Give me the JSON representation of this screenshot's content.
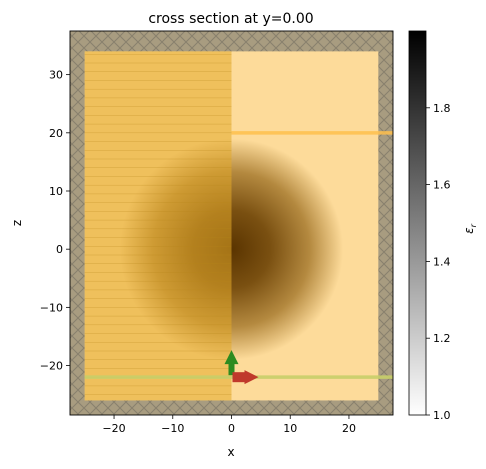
{
  "chart_data": {
    "type": "heatmap",
    "title": "cross section at y=0.00",
    "xlabel": "x",
    "ylabel": "z",
    "xlim": [
      -27.5,
      27.5
    ],
    "ylim": [
      -28.5,
      37.5
    ],
    "x_ticks": [
      -20,
      -10,
      0,
      10,
      20
    ],
    "x_tick_labels": [
      "−20",
      "−10",
      "0",
      "10",
      "20"
    ],
    "y_ticks": [
      -20,
      -10,
      0,
      10,
      20,
      30
    ],
    "y_tick_labels": [
      "−20",
      "−10",
      "0",
      "10",
      "20",
      "30"
    ],
    "colorbar": {
      "label": "εr",
      "label_main": "ε",
      "label_sub": "r",
      "range": [
        1.0,
        2.0
      ],
      "ticks": [
        1.0,
        1.2,
        1.4,
        1.6,
        1.8
      ],
      "tick_labels": [
        "1.0",
        "1.2",
        "1.4",
        "1.6",
        "1.8"
      ],
      "colormap": "gray_r"
    },
    "simulation_domain": {
      "x": [
        -25,
        25
      ],
      "z": [
        -26,
        34
      ]
    },
    "pml_thickness": 2.5,
    "sphere": {
      "center": [
        0,
        0
      ],
      "radius": 19,
      "permittivity_peak": 1.9
    },
    "symmetry_region": {
      "x": [
        -25,
        0
      ],
      "color": "#e3a92a"
    },
    "monitor_line_z": 20,
    "source_line_z": -22,
    "source_arrows": [
      {
        "name": "polarization",
        "direction": "+z",
        "color": "#2e8b20"
      },
      {
        "name": "propagation",
        "direction": "+x",
        "color": "#c0392b"
      }
    ],
    "colors": {
      "domain_fill": "#fddb9a",
      "pml_fill": "#a89c80",
      "monitor_line": "#ffc04d",
      "source_line": "#c8cf6a"
    }
  }
}
